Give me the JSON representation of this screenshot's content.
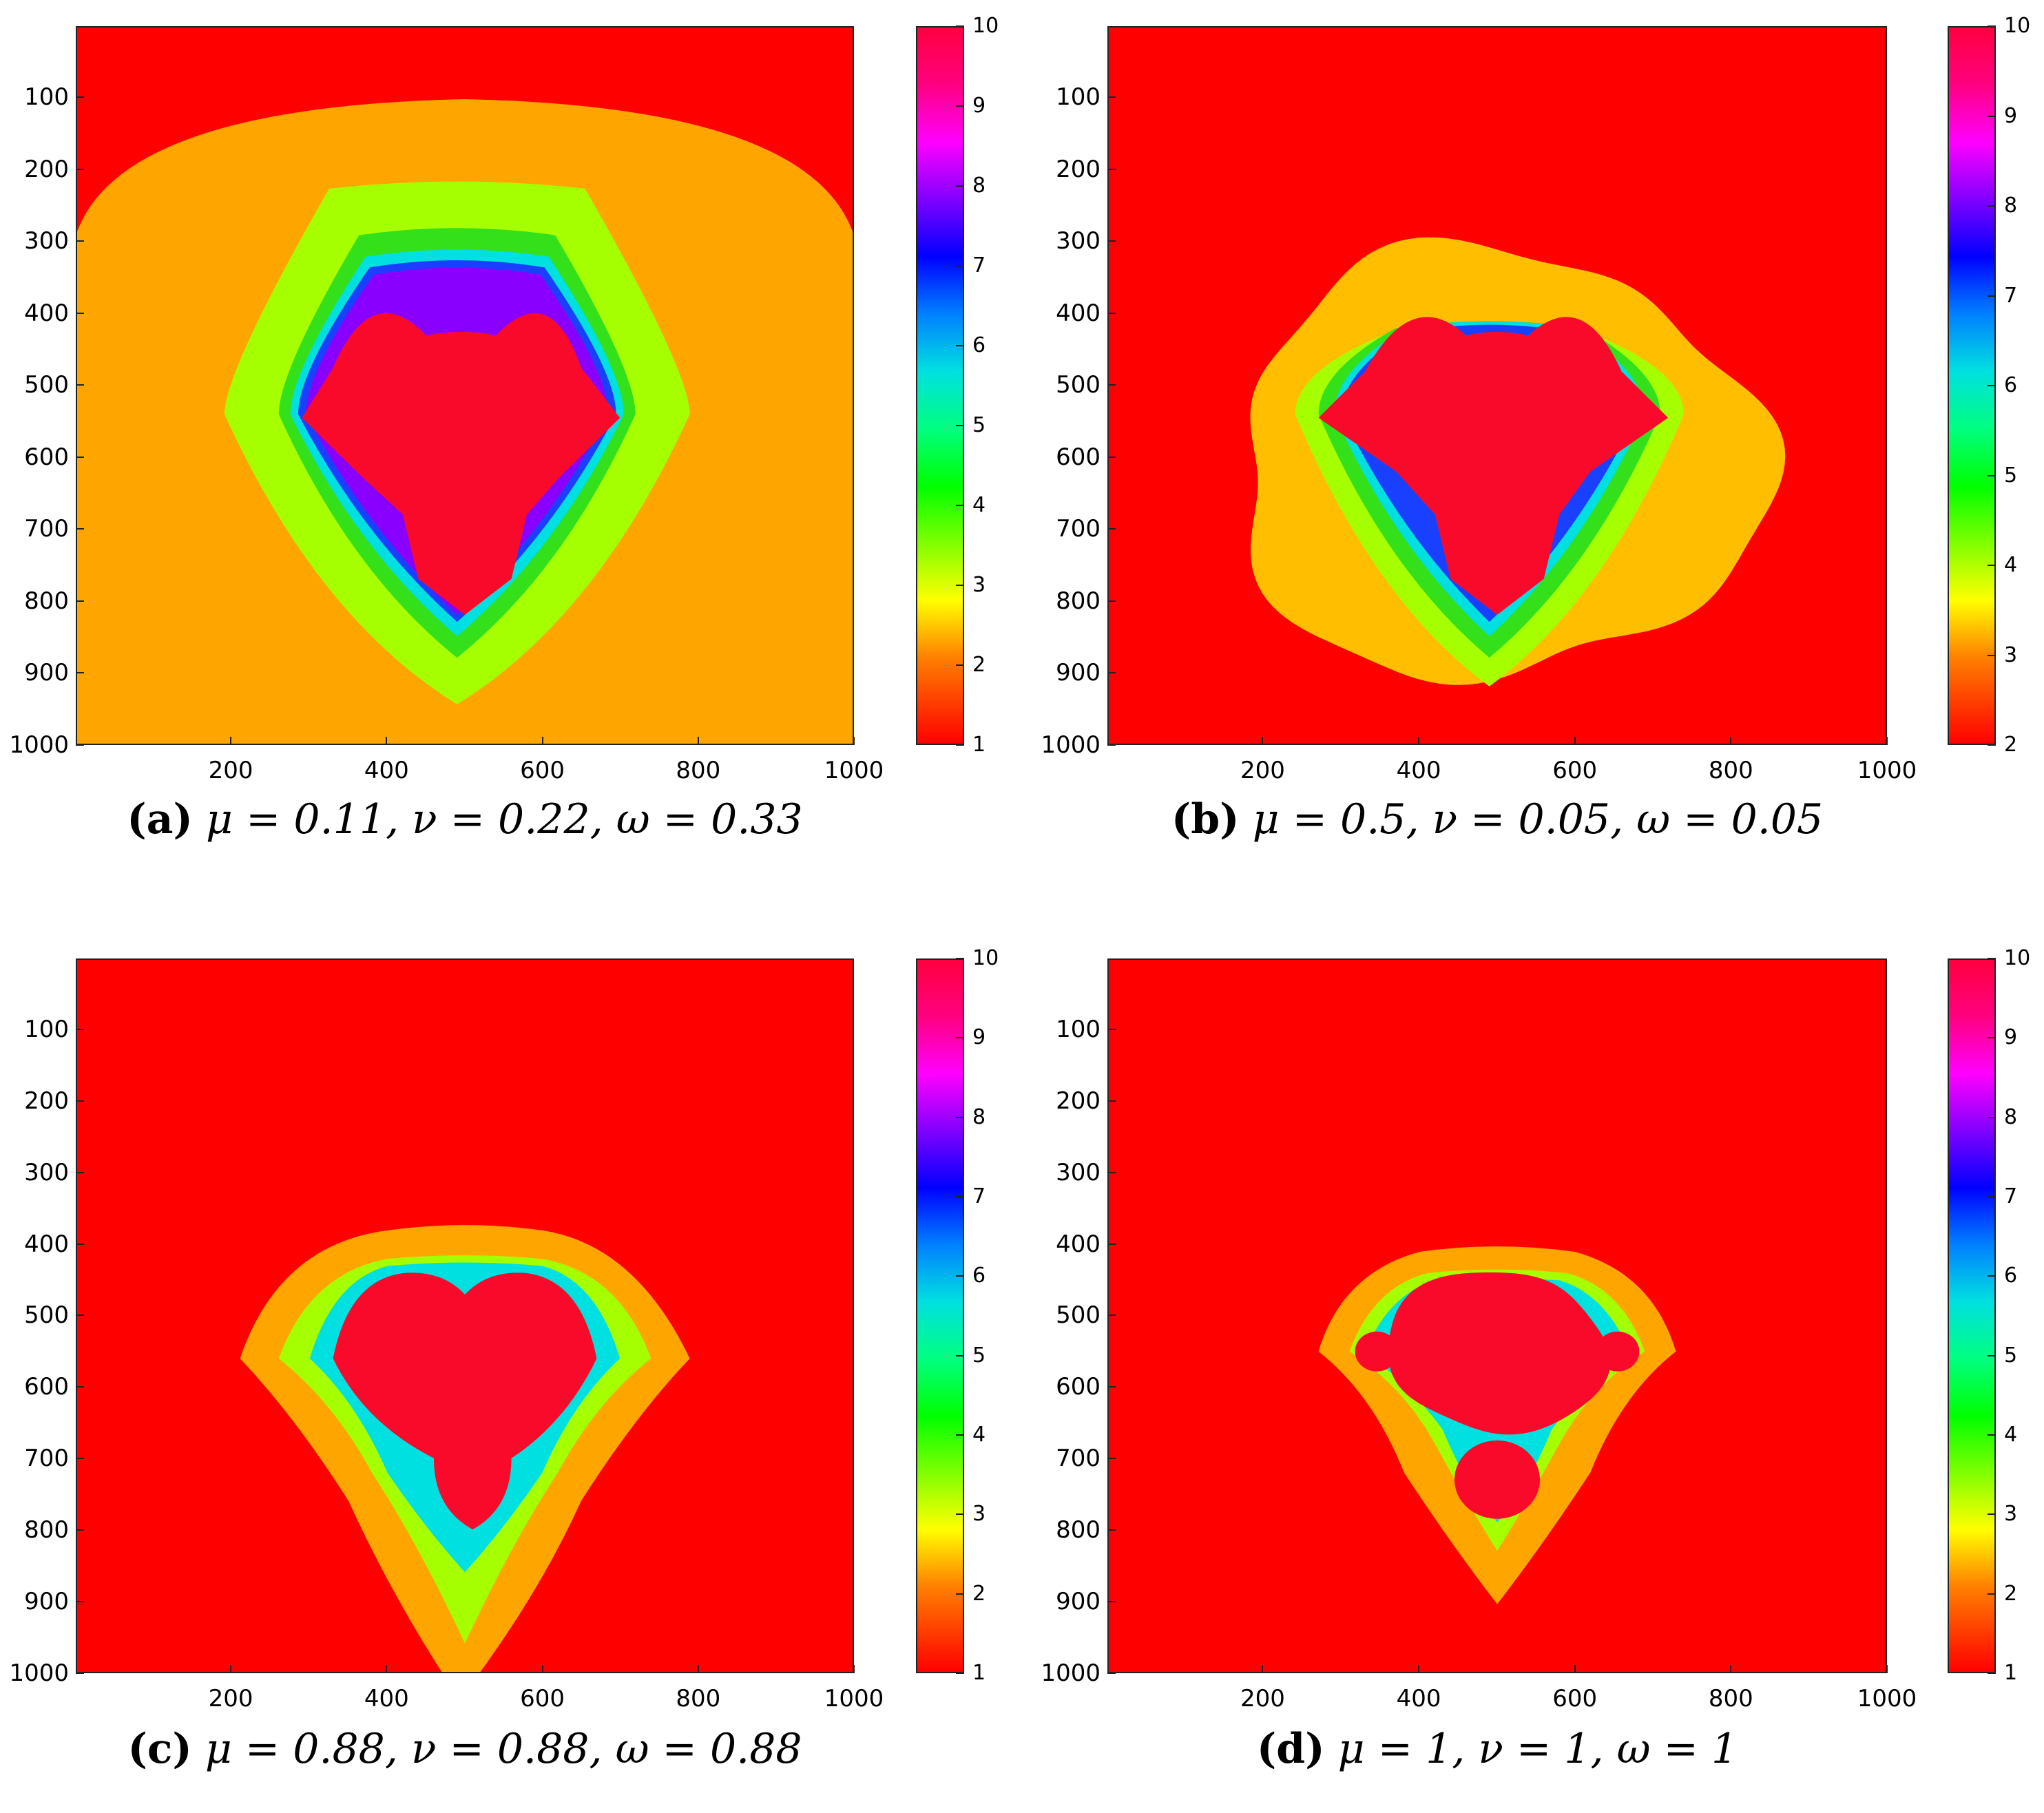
{
  "colors": {
    "outer": "#ff0000",
    "inner": "#fa0a2a",
    "orange": "#ffa500",
    "gold": "#ffbf00",
    "lime": "#a6ff00",
    "green": "#33e01a",
    "cyan": "#00e0e0",
    "blue": "#1a40ff",
    "violet": "#8a00ff",
    "magenta": "#ff00ff"
  },
  "chart_data": [
    {
      "type": "heatmap",
      "caption_tag": "(a)",
      "caption_params": "μ = 0.11, ν = 0.22, ω = 0.33",
      "x_ticks": [
        "200",
        "400",
        "600",
        "800",
        "1000"
      ],
      "y_ticks": [
        "100",
        "200",
        "300",
        "400",
        "500",
        "600",
        "700",
        "800",
        "900",
        "1000"
      ],
      "xlim": [
        1,
        1000
      ],
      "ylim": [
        1,
        1000
      ],
      "colorbar_ticks": [
        "1",
        "2",
        "3",
        "4",
        "5",
        "6",
        "7",
        "8",
        "9",
        "10"
      ],
      "colorbar_range": [
        1,
        10
      ],
      "mu": 0.11,
      "nu": 0.22,
      "omega": 0.33
    },
    {
      "type": "heatmap",
      "caption_tag": "(b)",
      "caption_params": "μ = 0.5, ν = 0.05, ω = 0.05",
      "x_ticks": [
        "200",
        "400",
        "600",
        "800",
        "1000"
      ],
      "y_ticks": [
        "100",
        "200",
        "300",
        "400",
        "500",
        "600",
        "700",
        "800",
        "900",
        "1000"
      ],
      "xlim": [
        1,
        1000
      ],
      "ylim": [
        1,
        1000
      ],
      "colorbar_ticks": [
        "2",
        "3",
        "4",
        "5",
        "6",
        "7",
        "8",
        "9",
        "10"
      ],
      "colorbar_range": [
        2,
        10
      ],
      "mu": 0.5,
      "nu": 0.05,
      "omega": 0.05
    },
    {
      "type": "heatmap",
      "caption_tag": "(c)",
      "caption_params": "μ = 0.88, ν = 0.88, ω = 0.88",
      "x_ticks": [
        "200",
        "400",
        "600",
        "800",
        "1000"
      ],
      "y_ticks": [
        "100",
        "200",
        "300",
        "400",
        "500",
        "600",
        "700",
        "800",
        "900",
        "1000"
      ],
      "xlim": [
        1,
        1000
      ],
      "ylim": [
        1,
        1000
      ],
      "colorbar_ticks": [
        "1",
        "2",
        "3",
        "4",
        "5",
        "6",
        "7",
        "8",
        "9",
        "10"
      ],
      "colorbar_range": [
        1,
        10
      ],
      "mu": 0.88,
      "nu": 0.88,
      "omega": 0.88
    },
    {
      "type": "heatmap",
      "caption_tag": "(d)",
      "caption_params": "μ = 1, ν = 1, ω = 1",
      "x_ticks": [
        "200",
        "400",
        "600",
        "800",
        "1000"
      ],
      "y_ticks": [
        "100",
        "200",
        "300",
        "400",
        "500",
        "600",
        "700",
        "800",
        "900",
        "1000"
      ],
      "xlim": [
        1,
        1000
      ],
      "ylim": [
        1,
        1000
      ],
      "colorbar_ticks": [
        "1",
        "2",
        "3",
        "4",
        "5",
        "6",
        "7",
        "8",
        "9",
        "10"
      ],
      "colorbar_range": [
        1,
        10
      ],
      "mu": 1,
      "nu": 1,
      "omega": 1
    }
  ]
}
